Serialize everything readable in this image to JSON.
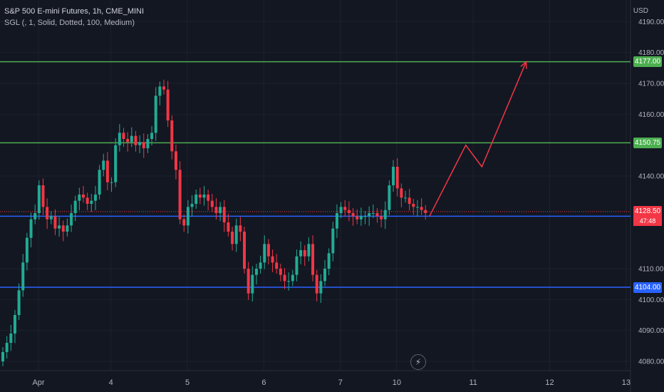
{
  "header": {
    "symbol_line": "S&P 500 E-mini Futures, 1h, CME_MINI",
    "indicator_line": "SGL (, 1, Solid, Dotted, 100, Medium)"
  },
  "axis": {
    "currency": "USD"
  },
  "colors": {
    "background": "#131722",
    "grid": "#1e222d",
    "up": "#22ab94",
    "down": "#f23645",
    "green_line": "#4caf50",
    "blue_line": "#2962ff",
    "projection": "#f23645",
    "last_price": "#f23645"
  },
  "chart_data": {
    "type": "candlestick",
    "title": "S&P 500 E-mini Futures, 1h, CME_MINI",
    "ylim": [
      4077,
      4197
    ],
    "y_ticks": [
      4080,
      4090,
      4100,
      4110,
      4140,
      4160,
      4170,
      4180,
      4190
    ],
    "y_tick_labels": [
      "4080.00",
      "4090.00",
      "4100.00",
      "4110.00",
      "4140.00",
      "4160.00",
      "4170.00",
      "4180.00",
      "4190.00"
    ],
    "x_ticks": [
      {
        "label": "Apr",
        "pos": 0
      },
      {
        "label": "4",
        "pos": 18
      },
      {
        "label": "5",
        "pos": 37
      },
      {
        "label": "6",
        "pos": 56
      },
      {
        "label": "7",
        "pos": 75
      },
      {
        "label": "10",
        "pos": 89
      },
      {
        "label": "11",
        "pos": 108
      },
      {
        "label": "12",
        "pos": 127
      },
      {
        "label": "13",
        "pos": 146
      }
    ],
    "closes": [
      4083,
      4086,
      4089,
      4095,
      4103,
      4112,
      4120,
      4126,
      4128,
      4137,
      4130,
      4126,
      4127,
      4123,
      4124,
      4122,
      4124,
      4128,
      4132,
      4134,
      4133,
      4131,
      4132,
      4134,
      4142,
      4145,
      4138,
      4138,
      4150,
      4154,
      4152,
      4151,
      4153,
      4150,
      4151,
      4149,
      4152,
      4154,
      4166,
      4169,
      4168,
      4158,
      4148,
      4142,
      4126,
      4124,
      4130,
      4131,
      4134,
      4133,
      4134,
      4132,
      4130,
      4128,
      4130,
      4125,
      4122,
      4118,
      4124,
      4122,
      4110,
      4102,
      4108,
      4110,
      4112,
      4118,
      4114,
      4112,
      4110,
      4108,
      4106,
      4106,
      4108,
      4114,
      4116,
      4114,
      4118,
      4108,
      4102,
      4106,
      4110,
      4115,
      4123,
      4128,
      4130,
      4129,
      4128,
      4127,
      4126,
      4127,
      4127,
      4128,
      4128,
      4127,
      4126,
      4129,
      4137,
      4143,
      4136,
      4133,
      4133,
      4131,
      4130,
      4130,
      4129,
      4128
    ],
    "opens": [
      4080,
      4083,
      4086,
      4089,
      4095,
      4103,
      4112,
      4120,
      4126,
      4128,
      4137,
      4130,
      4126,
      4127,
      4123,
      4124,
      4122,
      4124,
      4128,
      4132,
      4134,
      4133,
      4131,
      4132,
      4134,
      4142,
      4145,
      4138,
      4138,
      4150,
      4154,
      4152,
      4151,
      4153,
      4150,
      4151,
      4149,
      4152,
      4154,
      4166,
      4169,
      4168,
      4158,
      4148,
      4142,
      4126,
      4124,
      4130,
      4131,
      4134,
      4133,
      4134,
      4132,
      4130,
      4128,
      4130,
      4125,
      4122,
      4118,
      4124,
      4122,
      4110,
      4102,
      4108,
      4110,
      4112,
      4118,
      4114,
      4112,
      4110,
      4108,
      4106,
      4106,
      4108,
      4114,
      4116,
      4114,
      4118,
      4108,
      4102,
      4106,
      4110,
      4115,
      4123,
      4128,
      4130,
      4129,
      4128,
      4127,
      4126,
      4127,
      4127,
      4128,
      4128,
      4127,
      4126,
      4129,
      4137,
      4143,
      4136,
      4133,
      4133,
      4131,
      4130,
      4130,
      4129
    ],
    "levels": [
      {
        "value": 4177.0,
        "label": "4177.00",
        "kind": "green"
      },
      {
        "value": 4150.75,
        "label": "4150.75",
        "kind": "green"
      },
      {
        "value": 4127.0,
        "label": "4127.00",
        "kind": "blue"
      },
      {
        "value": 4104.0,
        "label": "4104.00",
        "kind": "blue"
      }
    ],
    "last_price": {
      "value": 4128.5,
      "label": "4128.50",
      "countdown": "47:48"
    },
    "projection": [
      {
        "pos": 106,
        "y": 4127.0
      },
      {
        "pos": 115,
        "y": 4150.0
      },
      {
        "pos": 119,
        "y": 4143.0
      },
      {
        "pos": 130,
        "y": 4177.0
      }
    ]
  }
}
